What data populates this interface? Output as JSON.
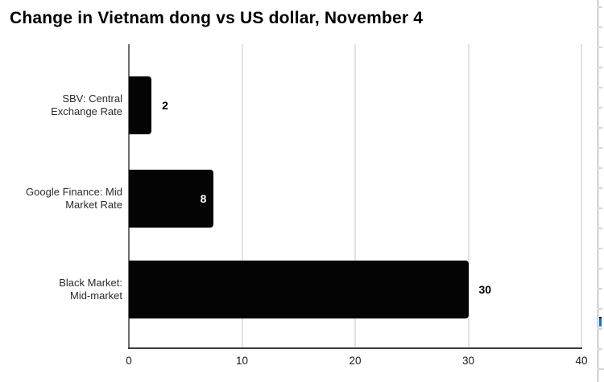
{
  "window": {
    "background": "#ffffff"
  },
  "chart_data": {
    "type": "bar",
    "orientation": "horizontal",
    "title": "Change in Vietnam dong vs US dollar, November 4",
    "categories": [
      "SBV: Central\nExchange Rate",
      "Google Finance: Mid\nMarket Rate",
      "Black Market:\nMid-market"
    ],
    "values": [
      2,
      7.5,
      30
    ],
    "value_labels": [
      "2",
      "8",
      "30"
    ],
    "value_label_inside": [
      false,
      true,
      false
    ],
    "x_ticks": [
      "0",
      "10",
      "20",
      "30",
      "40"
    ],
    "x_tick_values": [
      0,
      10,
      20,
      30,
      40
    ],
    "xlim": [
      0,
      40
    ],
    "xlabel": "",
    "ylabel": "",
    "grid": "vertical-gridlines",
    "legend": "none",
    "colors": {
      "bar": "#040404",
      "value_label_outside": "#000000",
      "value_label_inside": "#ffffff",
      "gridline": "#e2e2e2",
      "zero_line": "#6e6e6e",
      "axis_line": "#3d3d3d",
      "tick_label": "#1a1a1a",
      "category_label": "#2b2b2b",
      "title": "#000000"
    }
  },
  "right_edge_panel": {
    "border_color": "#9e9e9e",
    "row_tick_color": "#d6d6d6",
    "link_sliver_color": "#1a6fd4"
  }
}
